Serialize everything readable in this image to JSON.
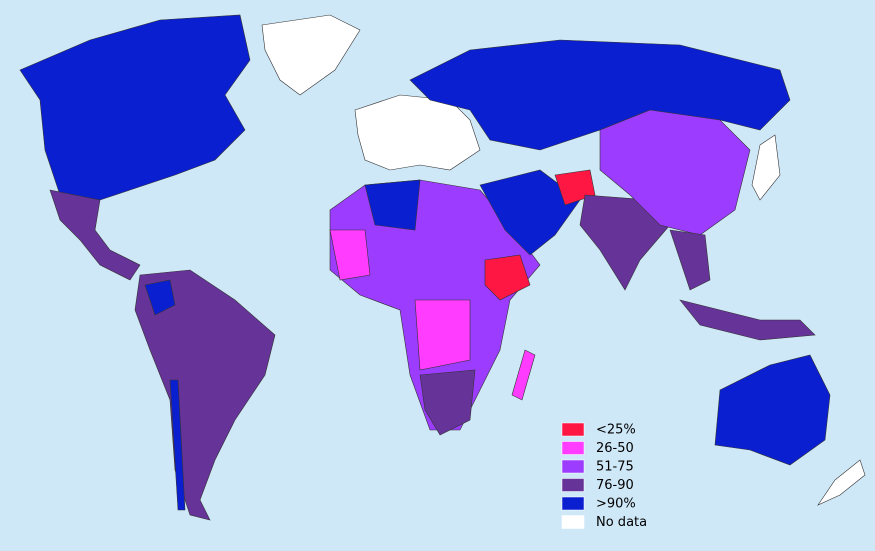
{
  "legend": {
    "items": [
      {
        "label": "<25%",
        "color": "#ff1744"
      },
      {
        "label": "26-50",
        "color": "#ff3cff"
      },
      {
        "label": "51-75",
        "color": "#9b3cff"
      },
      {
        "label": "76-90",
        "color": "#663399"
      },
      {
        ">90%": null,
        "label": ">90%",
        "color": "#0a1fd0"
      },
      {
        "label": "No data",
        "color": "#ffffff"
      }
    ]
  }
}
